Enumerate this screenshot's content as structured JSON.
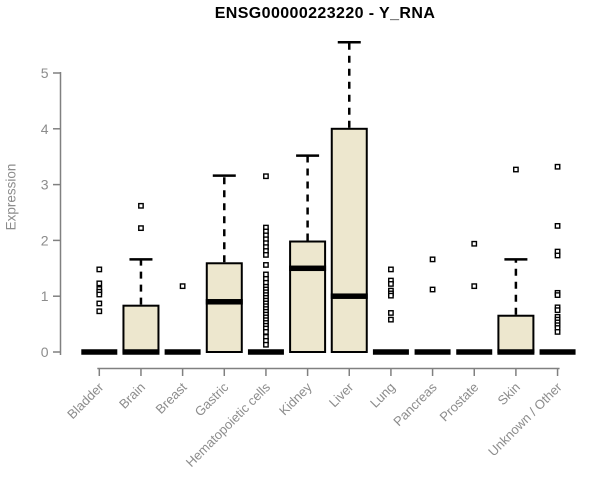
{
  "chart_data": {
    "type": "boxplot",
    "title": "ENSG00000223220 - Y_RNA",
    "ylabel": "Expression",
    "xlabel": "",
    "yticks": [
      0,
      1,
      2,
      3,
      4,
      5
    ],
    "ylim": [
      0,
      5.6
    ],
    "grid": false,
    "legend": "none",
    "categories": [
      "Bladder",
      "Brain",
      "Breast",
      "Gastric",
      "Hematopoietic cells",
      "Kidney",
      "Liver",
      "Lung",
      "Pancreas",
      "Prostate",
      "Skin",
      "Unknown / Other"
    ],
    "series": [
      {
        "category": "Bladder",
        "q1": 0,
        "median": 0,
        "q3": 0,
        "whisker_low": 0,
        "whisker_high": 0,
        "outliers": [
          1.48,
          1.23,
          1.13,
          1.08,
          1.03,
          0.87,
          0.73
        ]
      },
      {
        "category": "Brain",
        "q1": 0,
        "median": 0,
        "q3": 0.83,
        "whisker_low": 0,
        "whisker_high": 1.66,
        "outliers": [
          2.62,
          2.22
        ]
      },
      {
        "category": "Breast",
        "q1": 0,
        "median": 0,
        "q3": 0,
        "whisker_low": 0,
        "whisker_high": 0,
        "outliers": [
          1.18
        ]
      },
      {
        "category": "Gastric",
        "q1": 0,
        "median": 0.9,
        "q3": 1.59,
        "whisker_low": 0,
        "whisker_high": 3.16,
        "outliers": []
      },
      {
        "category": "Hematopoietic cells",
        "q1": 0,
        "median": 0,
        "q3": 0,
        "whisker_low": 0,
        "whisker_high": 0,
        "outliers": [
          3.15,
          2.23,
          2.16,
          2.09,
          2.02,
          1.95,
          1.88,
          1.81,
          1.74,
          1.56,
          1.39,
          1.31,
          1.24,
          1.17,
          1.12,
          1.07,
          1.02,
          0.97,
          0.92,
          0.87,
          0.82,
          0.77,
          0.72,
          0.67,
          0.62,
          0.57,
          0.52,
          0.47,
          0.42,
          0.36,
          0.27,
          0.2,
          0.13
        ]
      },
      {
        "category": "Kidney",
        "q1": 0,
        "median": 1.5,
        "q3": 1.98,
        "whisker_low": 0,
        "whisker_high": 3.52,
        "outliers": []
      },
      {
        "category": "Liver",
        "q1": 0,
        "median": 1.0,
        "q3": 4.0,
        "whisker_low": 0,
        "whisker_high": 5.55,
        "outliers": []
      },
      {
        "category": "Lung",
        "q1": 0,
        "median": 0,
        "q3": 0,
        "whisker_low": 0,
        "whisker_high": 0,
        "outliers": [
          1.48,
          1.28,
          1.22,
          1.1,
          1.05,
          1.01,
          0.7,
          0.58
        ]
      },
      {
        "category": "Pancreas",
        "q1": 0,
        "median": 0,
        "q3": 0,
        "whisker_low": 0,
        "whisker_high": 0,
        "outliers": [
          1.66,
          1.12
        ]
      },
      {
        "category": "Prostate",
        "q1": 0,
        "median": 0,
        "q3": 0,
        "whisker_low": 0,
        "whisker_high": 0,
        "outliers": [
          1.94,
          1.18
        ]
      },
      {
        "category": "Skin",
        "q1": 0,
        "median": 0,
        "q3": 0.65,
        "whisker_low": 0,
        "whisker_high": 1.66,
        "outliers": [
          3.27
        ]
      },
      {
        "category": "Unknown / Other",
        "q1": 0,
        "median": 0,
        "q3": 0,
        "whisker_low": 0,
        "whisker_high": 0,
        "outliers": [
          3.32,
          2.26,
          1.8,
          1.73,
          1.06,
          1.02,
          0.8,
          0.75,
          0.63,
          0.58,
          0.53,
          0.48,
          0.43,
          0.36
        ]
      }
    ],
    "colors": {
      "background": "#ffffff",
      "box_fill": "#EDE7CE",
      "box_stroke": "#000000",
      "outlier_fill": "#ffffff",
      "axis": "#808080",
      "tick_label": "#8c8c8c",
      "title": "#000000"
    }
  }
}
